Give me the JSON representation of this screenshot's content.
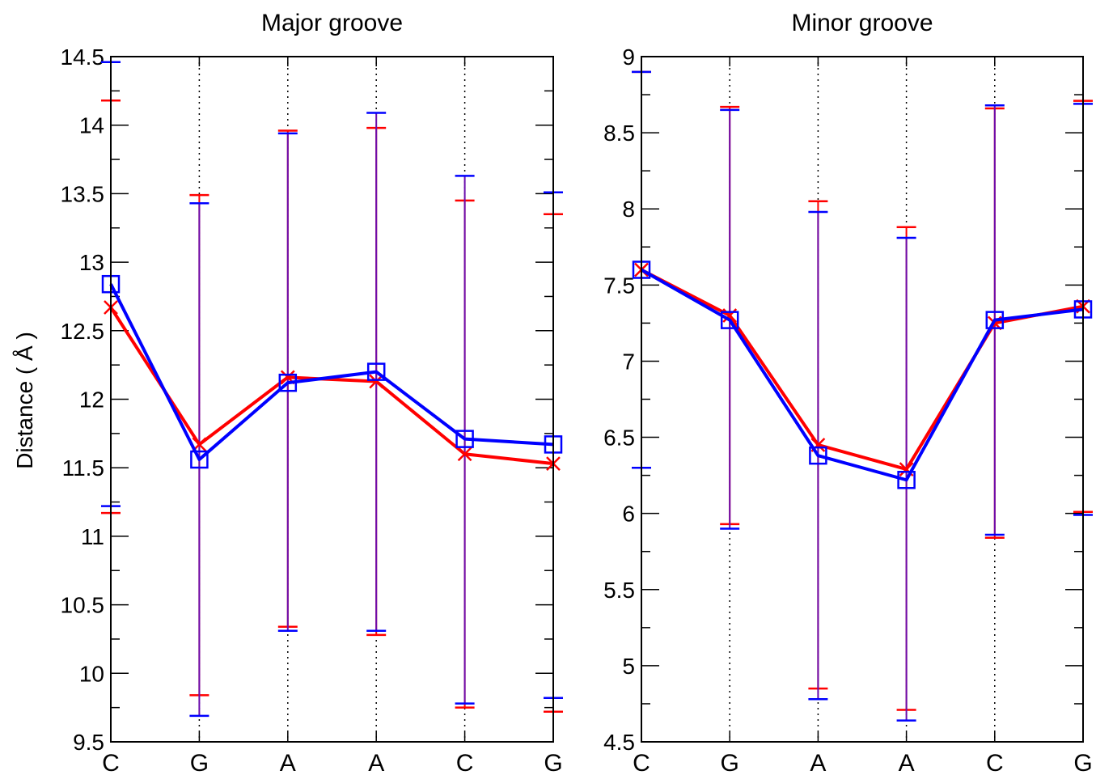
{
  "figure": {
    "ylabel": "Distance ( Å )",
    "series_colors": {
      "red": "#ff0000",
      "blue": "#0000ff",
      "errorbar_blend": "#6a0dad"
    }
  },
  "chart_data": [
    {
      "type": "line",
      "title": "Major groove",
      "xlabel": "",
      "ylabel": "Distance ( Å )",
      "categories": [
        "C",
        "G",
        "A",
        "A",
        "C",
        "G"
      ],
      "ylim": [
        9.5,
        14.5
      ],
      "yticks": [
        "9.5",
        "10",
        "10.5",
        "11",
        "11.5",
        "12",
        "12.5",
        "13",
        "13.5",
        "14",
        "14.5"
      ],
      "grid": "vertical dotted lines at each category",
      "series": [
        {
          "color": "#ff0000",
          "marker": "x",
          "values": [
            12.67,
            11.67,
            12.16,
            12.13,
            11.6,
            11.53
          ],
          "err_low": [
            11.17,
            9.84,
            10.34,
            10.28,
            9.75,
            9.72
          ],
          "err_high": [
            14.18,
            13.49,
            13.96,
            13.98,
            13.45,
            13.35
          ]
        },
        {
          "color": "#0000ff",
          "marker": "square",
          "values": [
            12.84,
            11.56,
            12.12,
            12.2,
            11.71,
            11.67
          ],
          "err_low": [
            11.22,
            9.69,
            10.31,
            10.31,
            9.78,
            9.82
          ],
          "err_high": [
            14.46,
            13.43,
            13.94,
            14.09,
            13.63,
            13.51
          ]
        }
      ]
    },
    {
      "type": "line",
      "title": "Minor groove",
      "xlabel": "",
      "ylabel": "",
      "categories": [
        "C",
        "G",
        "A",
        "A",
        "C",
        "G"
      ],
      "ylim": [
        4.5,
        9
      ],
      "yticks": [
        "4.5",
        "5",
        "5.5",
        "6",
        "6.5",
        "7",
        "7.5",
        "8",
        "8.5",
        "9"
      ],
      "grid": "vertical dotted lines at each category",
      "series": [
        {
          "color": "#ff0000",
          "marker": "x",
          "values": [
            7.6,
            7.3,
            6.45,
            6.29,
            7.25,
            7.36
          ],
          "err_low": [
            6.3,
            5.93,
            4.85,
            4.71,
            5.84,
            6.01
          ],
          "err_high": [
            8.9,
            8.67,
            8.05,
            7.88,
            8.66,
            8.71
          ]
        },
        {
          "color": "#0000ff",
          "marker": "square",
          "values": [
            7.6,
            7.27,
            6.38,
            6.22,
            7.27,
            7.34
          ],
          "err_low": [
            6.3,
            5.9,
            4.78,
            4.64,
            5.86,
            5.99
          ],
          "err_high": [
            8.9,
            8.65,
            7.98,
            7.81,
            8.68,
            8.69
          ]
        }
      ]
    }
  ]
}
